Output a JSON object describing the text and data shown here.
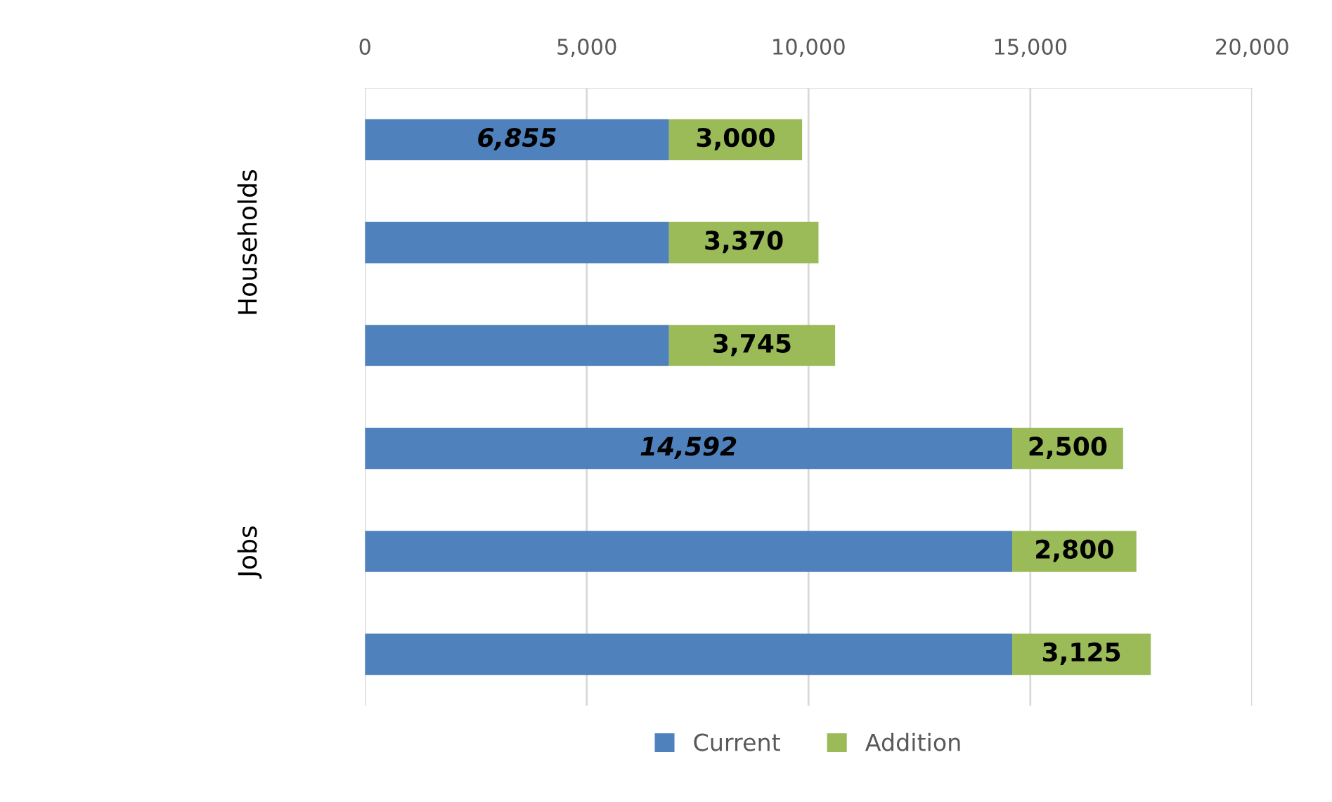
{
  "chart_data": {
    "type": "bar",
    "orientation": "horizontal",
    "stacked": true,
    "categories": [
      null,
      null,
      null,
      null,
      null,
      null
    ],
    "annotations": [
      "Households",
      "Jobs"
    ],
    "series": [
      {
        "name": "Current",
        "color": "#4f81bd",
        "values": [
          6855,
          6855,
          6855,
          14592,
          14592,
          14592
        ],
        "value_labels": [
          "6,855",
          null,
          null,
          "14,592",
          null,
          null
        ]
      },
      {
        "name": "Addition",
        "color": "#9bbb59",
        "values": [
          3000,
          3370,
          3745,
          2500,
          2800,
          3125
        ],
        "value_labels": [
          "3,000",
          "3,370",
          "3,745",
          "2,500",
          "2,800",
          "3,125"
        ]
      }
    ],
    "xlim": [
      0,
      20000
    ],
    "xticks": [
      0,
      {
        "value": 5000,
        "label": "5,000"
      },
      {
        "value": 10000,
        "label": "10,000"
      },
      {
        "value": 15000,
        "label": "15,000"
      },
      {
        "value": 20000,
        "label": "20,000"
      }
    ],
    "grid": "x",
    "legend": "bottom"
  }
}
